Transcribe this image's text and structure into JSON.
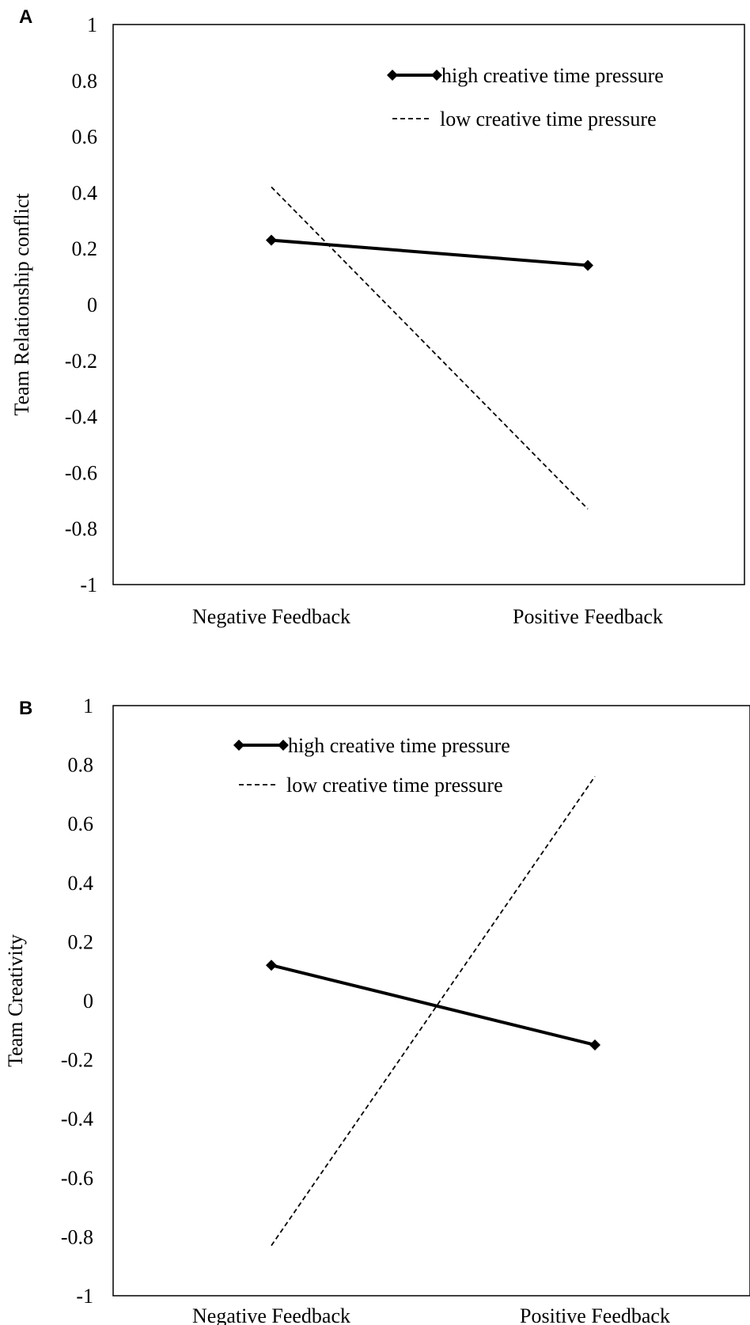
{
  "chart_data": [
    {
      "panel": "A",
      "type": "line",
      "categories": [
        "Negative Feedback",
        "Positive Feedback"
      ],
      "ylabel": "Team Relationship conflict",
      "ylim": [
        -1,
        1
      ],
      "yticks": [
        "1",
        "0.8",
        "0.6",
        "0.4",
        "0.2",
        "0",
        "-0.2",
        "-0.4",
        "-0.6",
        "-0.8",
        "-1"
      ],
      "legend_position": "top-right",
      "series": [
        {
          "name": "high creative time pressure",
          "style": "solid-diamond",
          "values": [
            0.23,
            0.14
          ]
        },
        {
          "name": "low creative time pressure",
          "style": "dashed",
          "values": [
            0.42,
            -0.73
          ]
        }
      ]
    },
    {
      "panel": "B",
      "type": "line",
      "categories": [
        "Negative Feedback",
        "Positive Feedback"
      ],
      "ylabel": "Team  Creativity",
      "ylim": [
        -1,
        1
      ],
      "yticks": [
        "1",
        "0.8",
        "0.6",
        "0.4",
        "0.2",
        "0",
        "-0.2",
        "-0.4",
        "-0.6",
        "-0.8",
        "-1"
      ],
      "legend_position": "top-left",
      "series": [
        {
          "name": "high creative time pressure",
          "style": "solid-diamond",
          "values": [
            0.12,
            -0.15
          ]
        },
        {
          "name": "low creative time pressure",
          "style": "dashed",
          "values": [
            -0.83,
            0.76
          ]
        }
      ]
    }
  ]
}
